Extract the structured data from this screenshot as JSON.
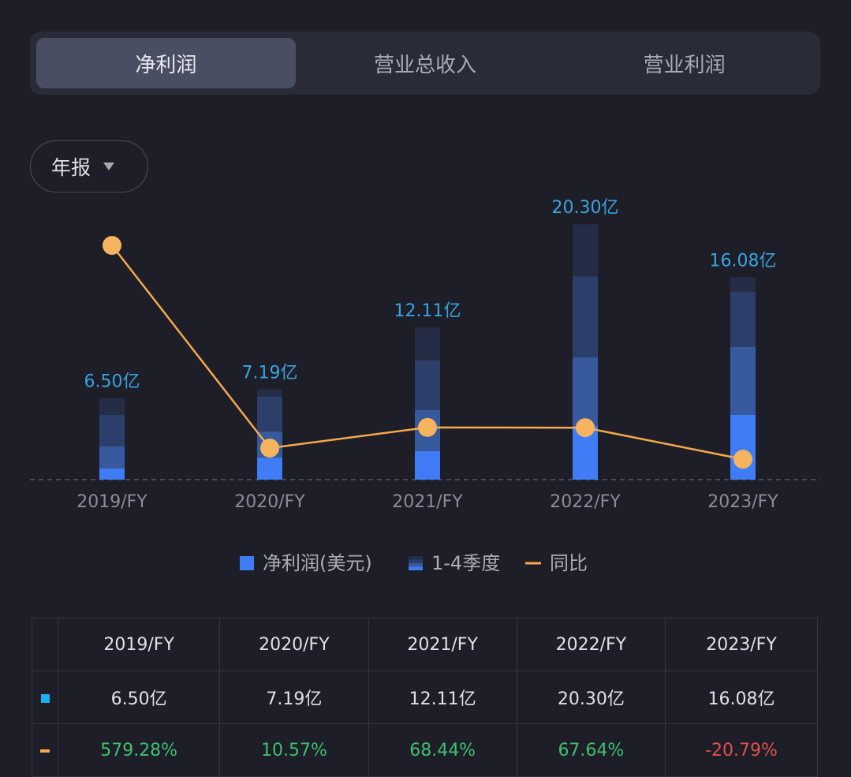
{
  "tabs": {
    "items": [
      "净利润",
      "营业总收入",
      "营业利润"
    ],
    "active": 0
  },
  "period_selector": {
    "label": "年报"
  },
  "chart_data": {
    "type": "bar",
    "categories": [
      "2019/FY",
      "2020/FY",
      "2021/FY",
      "2022/FY",
      "2023/FY"
    ],
    "stacked": true,
    "series": [
      {
        "color": "#3f7cf5",
        "values": [
          0.88,
          1.75,
          2.26,
          4.26,
          5.14
        ]
      },
      {
        "color": "#37599e",
        "values": [
          1.75,
          2.07,
          3.26,
          5.45,
          5.39
        ]
      },
      {
        "color": "#2c3f6b",
        "values": [
          2.51,
          2.76,
          3.95,
          6.45,
          4.39
        ]
      },
      {
        "color": "#242d45",
        "values": [
          1.36,
          0.61,
          2.64,
          4.14,
          1.16
        ]
      },
      {
        "name": "同比",
        "type": "line",
        "axis": "y2",
        "color": "#f6a94a",
        "values": [
          579.28,
          10.57,
          68.44,
          67.64,
          -20.79
        ]
      }
    ],
    "totals": {
      "values": [
        6.5,
        7.19,
        12.11,
        20.3,
        16.08
      ],
      "value_labels": [
        "6.50亿",
        "7.19亿",
        "12.11亿",
        "20.30亿",
        "16.08亿"
      ],
      "color": "#3ba3e0"
    },
    "bar_legend": [
      "净利润(美元)",
      "1-4季度"
    ],
    "ylim": [
      0,
      22
    ],
    "y2lim": [
      -78,
      699
    ]
  },
  "table": {
    "header": [
      "2019/FY",
      "2020/FY",
      "2021/FY",
      "2022/FY",
      "2023/FY"
    ],
    "rows": [
      [
        "6.50亿",
        "7.19亿",
        "12.11亿",
        "20.30亿",
        "16.08亿"
      ],
      [
        "579.28%",
        "10.57%",
        "68.44%",
        "67.64%",
        "-20.79%"
      ]
    ]
  }
}
